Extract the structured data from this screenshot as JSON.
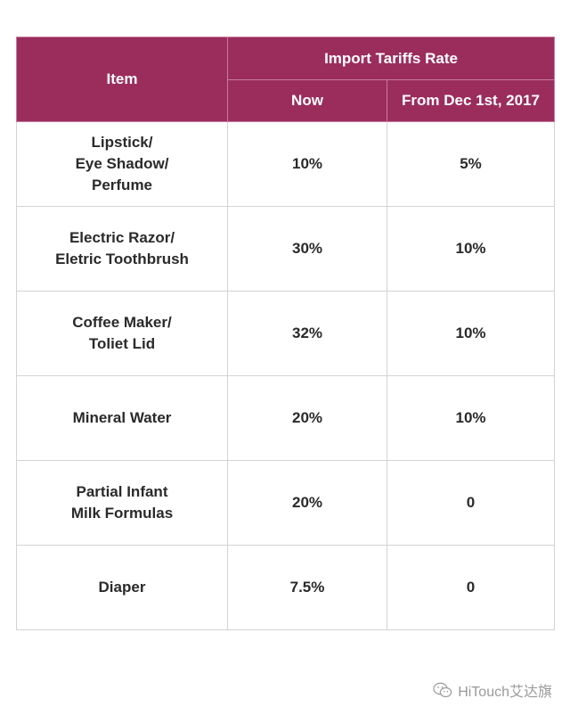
{
  "chart_data": {
    "type": "table",
    "columns": {
      "item": "Item",
      "group": "Import Tariffs Rate",
      "now": "Now",
      "later": "From Dec 1st, 2017"
    },
    "rows": [
      {
        "item": "Lipstick/\nEye Shadow/\nPerfume",
        "now": "10%",
        "later": "5%"
      },
      {
        "item": "Electric Razor/\nEletric Toothbrush",
        "now": "30%",
        "later": "10%"
      },
      {
        "item": "Coffee Maker/\nToliet Lid",
        "now": "32%",
        "later": "10%"
      },
      {
        "item": "Mineral Water",
        "now": "20%",
        "later": "10%"
      },
      {
        "item": "Partial Infant\nMilk Formulas",
        "now": "20%",
        "later": "0"
      },
      {
        "item": "Diaper",
        "now": "7.5%",
        "later": "0"
      }
    ]
  },
  "colors": {
    "header": "#9b2d5d",
    "border": "#d3d3d3"
  },
  "watermark": {
    "text": "HiTouch艾达旗",
    "icon": "wechat-icon"
  }
}
